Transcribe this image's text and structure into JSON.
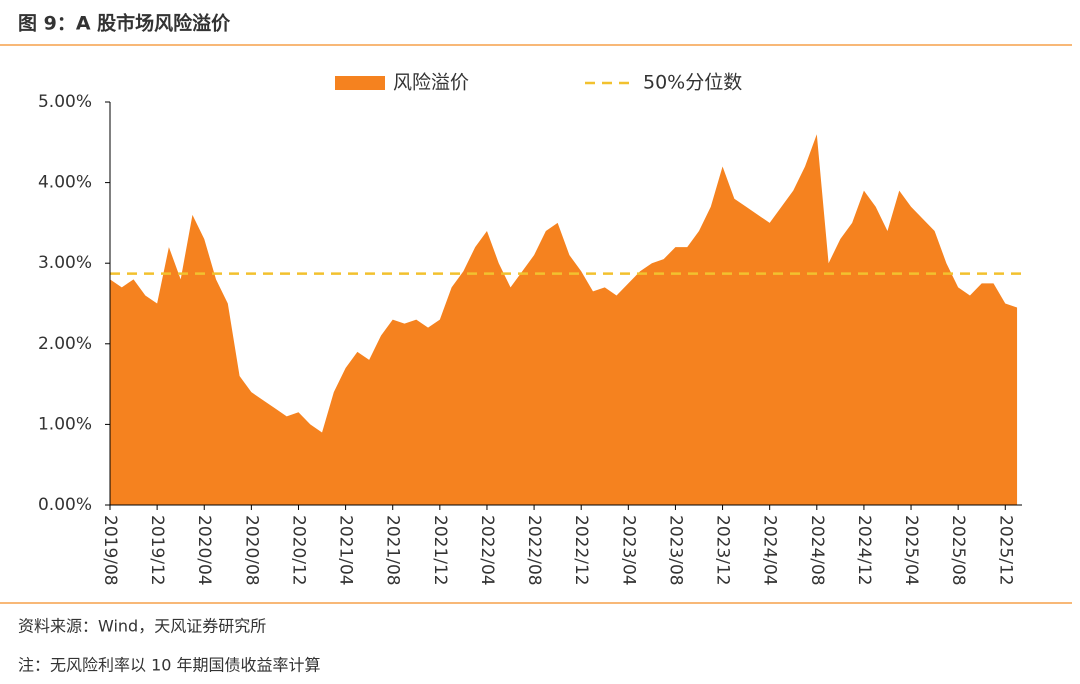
{
  "chart_data": {
    "type": "area",
    "title": "图 9：A 股市场风险溢价",
    "x": [
      "2019/08",
      "2019/09",
      "2019/10",
      "2019/11",
      "2019/12",
      "2020/01",
      "2020/02",
      "2020/03",
      "2020/04",
      "2020/05",
      "2020/06",
      "2020/07",
      "2020/08",
      "2020/09",
      "2020/10",
      "2020/11",
      "2020/12",
      "2021/01",
      "2021/02",
      "2021/03",
      "2021/04",
      "2021/05",
      "2021/06",
      "2021/07",
      "2021/08",
      "2021/09",
      "2021/10",
      "2021/11",
      "2021/12",
      "2022/01",
      "2022/02",
      "2022/03",
      "2022/04",
      "2022/05",
      "2022/06",
      "2022/07",
      "2022/08",
      "2022/09",
      "2022/10",
      "2022/11",
      "2022/12",
      "2023/01",
      "2023/02",
      "2023/03",
      "2023/04",
      "2023/05",
      "2023/06",
      "2023/07",
      "2023/08",
      "2023/09",
      "2023/10",
      "2023/11",
      "2023/12",
      "2024/01",
      "2024/02",
      "2024/03",
      "2024/04",
      "2024/05",
      "2024/06",
      "2024/07",
      "2024/08",
      "2024/09",
      "2024/10",
      "2024/11",
      "2024/12",
      "2025/01",
      "2025/02",
      "2025/03",
      "2025/04",
      "2025/05",
      "2025/06",
      "2025/07",
      "2025/08",
      "2025/09",
      "2025/10",
      "2025/11",
      "2025/12",
      "2026/01"
    ],
    "series": [
      {
        "name": "风险溢价",
        "color": "#f5821f",
        "values": [
          2.8,
          2.7,
          2.8,
          2.6,
          2.5,
          3.2,
          2.8,
          3.6,
          3.3,
          2.8,
          2.5,
          1.6,
          1.4,
          1.3,
          1.2,
          1.1,
          1.15,
          1.0,
          0.9,
          1.4,
          1.7,
          1.9,
          1.8,
          2.1,
          2.3,
          2.25,
          2.3,
          2.2,
          2.3,
          2.7,
          2.9,
          3.2,
          3.4,
          3.0,
          2.7,
          2.9,
          3.1,
          3.4,
          3.5,
          3.1,
          2.9,
          2.65,
          2.7,
          2.6,
          2.75,
          2.9,
          3.0,
          3.05,
          3.2,
          3.2,
          3.4,
          3.7,
          4.2,
          3.8,
          3.7,
          3.6,
          3.5,
          3.7,
          3.9,
          4.2,
          4.6,
          3.0,
          3.3,
          3.5,
          3.9,
          3.7,
          3.4,
          3.9,
          3.7,
          3.55,
          3.4,
          3.0,
          2.7,
          2.6,
          2.75,
          2.75,
          2.5,
          2.45
        ]
      }
    ],
    "reference_line": {
      "name": "50%分位数",
      "value": 2.87,
      "color": "#f2c12e"
    },
    "xticks": [
      "2019/08",
      "2019/12",
      "2020/04",
      "2020/08",
      "2020/12",
      "2021/04",
      "2021/08",
      "2021/12",
      "2022/04",
      "2022/08",
      "2022/12",
      "2023/04",
      "2023/08",
      "2023/12",
      "2024/04",
      "2024/08",
      "2024/12",
      "2025/04",
      "2025/08",
      "2025/12"
    ],
    "ylim": [
      0,
      5
    ],
    "yticks": [
      {
        "value": 0,
        "label": "0.00%"
      },
      {
        "value": 1,
        "label": "1.00%"
      },
      {
        "value": 2,
        "label": "2.00%"
      },
      {
        "value": 3,
        "label": "3.00%"
      },
      {
        "value": 4,
        "label": "4.00%"
      },
      {
        "value": 5,
        "label": "5.00%"
      }
    ],
    "source": "资料来源：Wind，天风证券研究所",
    "note": "注：无风险利率以 10 年期国债收益率计算"
  }
}
